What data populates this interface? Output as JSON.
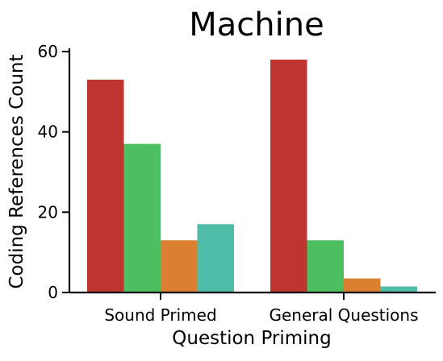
{
  "chart_data": {
    "type": "bar",
    "title": "Machine",
    "xlabel": "Question Priming",
    "ylabel": "Coding References Count",
    "categories": [
      "Sound Primed",
      "General Questions"
    ],
    "series": [
      {
        "color": "#BD3430",
        "values": [
          53,
          58
        ]
      },
      {
        "color": "#4CBF61",
        "values": [
          37,
          13
        ]
      },
      {
        "color": "#DB8031",
        "values": [
          13,
          3.5
        ]
      },
      {
        "color": "#4FBCA7",
        "values": [
          17,
          1.5
        ]
      }
    ],
    "ylim": [
      0,
      61
    ],
    "yticks": [
      0,
      20,
      40,
      60
    ],
    "grid": false,
    "legend": "none"
  }
}
